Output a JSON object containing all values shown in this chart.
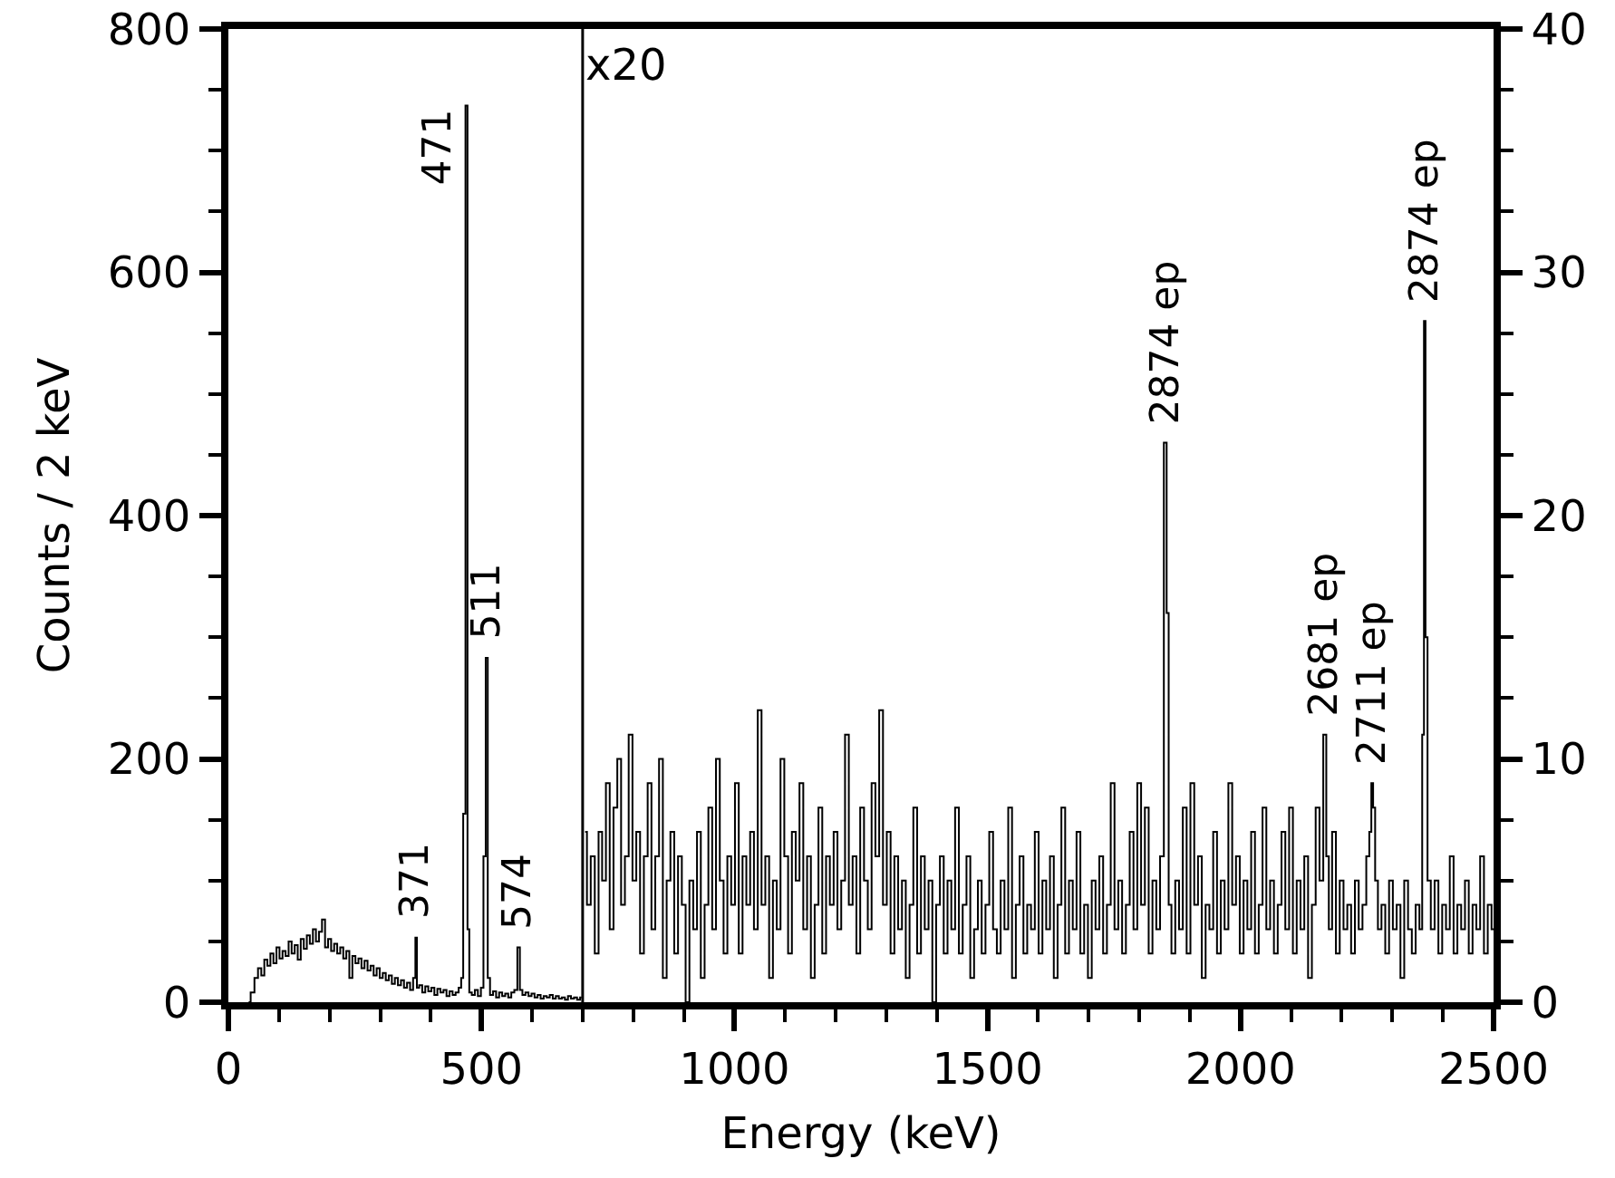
{
  "chart_data": {
    "type": "step",
    "xlabel": "Energy (keV)",
    "ylabel": "Counts / 2 keV",
    "xlim": [
      0,
      2500
    ],
    "xticks": [
      0,
      {
        "value": 100,
        "label": null
      },
      {
        "value": 200,
        "label": null
      },
      {
        "value": 300,
        "label": null
      },
      {
        "value": 400,
        "label": null
      },
      500,
      {
        "value": 600,
        "label": null
      },
      {
        "value": 700,
        "label": null
      },
      {
        "value": 800,
        "label": null
      },
      {
        "value": 900,
        "label": null
      },
      1000,
      {
        "value": 1100,
        "label": null
      },
      {
        "value": 1200,
        "label": null
      },
      {
        "value": 1300,
        "label": null
      },
      {
        "value": 1400,
        "label": null
      },
      1500,
      {
        "value": 1600,
        "label": null
      },
      {
        "value": 1700,
        "label": null
      },
      {
        "value": 1800,
        "label": null
      },
      {
        "value": 1900,
        "label": null
      },
      2000,
      {
        "value": 2100,
        "label": null
      },
      {
        "value": 2200,
        "label": null
      },
      {
        "value": 2300,
        "label": null
      },
      {
        "value": 2400,
        "label": null
      },
      2500
    ],
    "ylim": [
      0,
      800
    ],
    "yticks": [
      0,
      {
        "value": 50,
        "label": null
      },
      {
        "value": 100,
        "label": null
      },
      {
        "value": 150,
        "label": null
      },
      200,
      {
        "value": 250,
        "label": null
      },
      {
        "value": 300,
        "label": null
      },
      {
        "value": 350,
        "label": null
      },
      400,
      {
        "value": 450,
        "label": null
      },
      {
        "value": 500,
        "label": null
      },
      {
        "value": 550,
        "label": null
      },
      600,
      {
        "value": 650,
        "label": null
      },
      {
        "value": 700,
        "label": null
      },
      {
        "value": 750,
        "label": null
      },
      800
    ],
    "y2lim": [
      0,
      40
    ],
    "y2ticks": [
      0,
      {
        "value": 2.5,
        "label": null
      },
      {
        "value": 5,
        "label": null
      },
      {
        "value": 7.5,
        "label": null
      },
      10,
      {
        "value": 12.5,
        "label": null
      },
      {
        "value": 15,
        "label": null
      },
      {
        "value": 17.5,
        "label": null
      },
      20,
      {
        "value": 22.5,
        "label": null
      },
      {
        "value": 25,
        "label": null
      },
      {
        "value": 27.5,
        "label": null
      },
      30,
      {
        "value": 32.5,
        "label": null
      },
      {
        "value": 35,
        "label": null
      },
      {
        "value": 37.5,
        "label": null
      },
      40
    ],
    "grid": false,
    "ref_lines": [
      {
        "axis": "x",
        "value": 700,
        "label": "x20",
        "color": "#000000"
      }
    ],
    "annotations": [
      {
        "text": "371",
        "x": 371,
        "y": 53
      },
      {
        "text": "471",
        "x": 471,
        "y": 737
      },
      {
        "text": "511",
        "x": 511,
        "y": 283
      },
      {
        "text": "574",
        "x": 574,
        "y": 45
      },
      {
        "text": "2874 ep",
        "x": 1852,
        "y": 460
      },
      {
        "text": "2681 ep",
        "x": 2167,
        "y": 220
      },
      {
        "text": "2711 ep",
        "x": 2260,
        "y": 180
      },
      {
        "text": "2874 ep",
        "x": 2364,
        "y": 560
      }
    ],
    "series": [
      {
        "color": "#000000",
        "x": [
          40,
          48,
          55,
          62,
          68,
          74,
          80,
          86,
          92,
          98,
          104,
          110,
          116,
          122,
          128,
          134,
          140,
          146,
          152,
          158,
          164,
          170,
          176,
          182,
          188,
          194,
          200,
          206,
          212,
          218,
          224,
          230,
          236,
          242,
          248,
          254,
          260,
          266,
          272,
          278,
          284,
          290,
          296,
          302,
          308,
          314,
          320,
          326,
          332,
          338,
          344,
          350,
          356,
          362,
          368,
          371,
          374,
          380,
          386,
          392,
          398,
          404,
          410,
          416,
          422,
          428,
          434,
          440,
          446,
          452,
          458,
          462,
          466,
          471,
          474,
          478,
          484,
          490,
          496,
          502,
          506,
          511,
          514,
          520,
          526,
          532,
          538,
          544,
          550,
          556,
          562,
          568,
          574,
          578,
          584,
          590,
          596,
          602,
          608,
          614,
          620,
          626,
          632,
          638,
          644,
          650,
          656,
          662,
          668,
          674,
          680,
          686,
          692,
          698
        ],
        "values": [
          0,
          8,
          20,
          28,
          22,
          35,
          30,
          40,
          32,
          45,
          36,
          42,
          38,
          50,
          40,
          47,
          35,
          52,
          44,
          55,
          48,
          60,
          50,
          58,
          68,
          45,
          52,
          42,
          48,
          40,
          45,
          36,
          42,
          20,
          38,
          32,
          36,
          28,
          34,
          26,
          30,
          22,
          28,
          20,
          24,
          18,
          22,
          15,
          20,
          14,
          18,
          12,
          16,
          10,
          20,
          53,
          12,
          14,
          8,
          13,
          9,
          12,
          6,
          11,
          8,
          10,
          5,
          9,
          6,
          8,
          12,
          20,
          155,
          737,
          60,
          8,
          6,
          10,
          5,
          12,
          120,
          283,
          20,
          6,
          9,
          4,
          8,
          5,
          7,
          4,
          8,
          10,
          45,
          10,
          6,
          8,
          5,
          7,
          4,
          6,
          3,
          5,
          4,
          6,
          3,
          5,
          3,
          4,
          2,
          5,
          3,
          4,
          2,
          4
        ]
      },
      {
        "color": "#000000",
        "axis": "y2",
        "x": [
          705,
          712,
          720,
          728,
          735,
          742,
          750,
          757,
          765,
          772,
          780,
          787,
          795,
          802,
          810,
          817,
          825,
          832,
          840,
          847,
          855,
          862,
          870,
          877,
          885,
          892,
          900,
          907,
          915,
          922,
          930,
          937,
          945,
          952,
          960,
          967,
          975,
          982,
          990,
          997,
          1005,
          1012,
          1020,
          1027,
          1035,
          1042,
          1050,
          1057,
          1065,
          1072,
          1080,
          1087,
          1095,
          1102,
          1110,
          1117,
          1125,
          1132,
          1140,
          1147,
          1155,
          1162,
          1170,
          1177,
          1185,
          1192,
          1200,
          1207,
          1215,
          1222,
          1230,
          1237,
          1245,
          1252,
          1260,
          1267,
          1275,
          1282,
          1290,
          1297,
          1305,
          1312,
          1320,
          1327,
          1335,
          1342,
          1350,
          1357,
          1365,
          1372,
          1380,
          1387,
          1395,
          1402,
          1410,
          1417,
          1425,
          1432,
          1440,
          1447,
          1455,
          1462,
          1470,
          1477,
          1485,
          1492,
          1500,
          1507,
          1515,
          1522,
          1530,
          1537,
          1545,
          1552,
          1560,
          1567,
          1575,
          1582,
          1590,
          1597,
          1605,
          1612,
          1620,
          1627,
          1635,
          1642,
          1650,
          1657,
          1665,
          1672,
          1680,
          1687,
          1695,
          1702,
          1710,
          1717,
          1725,
          1732,
          1740,
          1747,
          1755,
          1762,
          1770,
          1777,
          1785,
          1792,
          1800,
          1807,
          1815,
          1822,
          1830,
          1837,
          1845,
          1852,
          1856,
          1860,
          1867,
          1875,
          1882,
          1890,
          1897,
          1905,
          1912,
          1920,
          1927,
          1935,
          1942,
          1950,
          1957,
          1965,
          1972,
          1980,
          1987,
          1995,
          2002,
          2010,
          2017,
          2025,
          2032,
          2040,
          2047,
          2055,
          2062,
          2070,
          2077,
          2085,
          2092,
          2100,
          2107,
          2115,
          2122,
          2130,
          2137,
          2145,
          2152,
          2160,
          2167,
          2172,
          2177,
          2185,
          2192,
          2200,
          2207,
          2215,
          2222,
          2230,
          2237,
          2245,
          2252,
          2257,
          2260,
          2264,
          2268,
          2275,
          2282,
          2290,
          2297,
          2305,
          2312,
          2320,
          2327,
          2335,
          2342,
          2350,
          2357,
          2361,
          2364,
          2367,
          2372,
          2380,
          2387,
          2395,
          2402,
          2410,
          2417,
          2425,
          2432,
          2440,
          2447,
          2455,
          2462,
          2470,
          2477,
          2485,
          2492,
          2500
        ],
        "values": [
          7,
          4,
          6,
          2,
          7,
          5,
          9,
          3,
          8,
          10,
          4,
          6,
          11,
          5,
          7,
          2,
          6,
          9,
          3,
          6,
          10,
          1,
          5,
          7,
          2,
          6,
          4,
          0,
          5,
          3,
          7,
          1,
          4,
          8,
          3,
          10,
          5,
          2,
          6,
          4,
          9,
          2,
          6,
          4,
          7,
          3,
          12,
          4,
          6,
          1,
          5,
          3,
          10,
          6,
          2,
          7,
          5,
          9,
          3,
          6,
          1,
          4,
          8,
          2,
          6,
          4,
          7,
          3,
          5,
          11,
          4,
          6,
          2,
          8,
          5,
          3,
          9,
          6,
          12,
          4,
          7,
          2,
          6,
          3,
          5,
          1,
          4,
          8,
          2,
          6,
          3,
          5,
          0,
          4,
          6,
          2,
          5,
          3,
          8,
          2,
          4,
          6,
          1,
          3,
          5,
          2,
          4,
          7,
          3,
          2,
          5,
          3,
          8,
          1,
          4,
          6,
          2,
          4,
          3,
          7,
          2,
          5,
          3,
          6,
          1,
          4,
          8,
          2,
          5,
          3,
          7,
          2,
          4,
          1,
          5,
          3,
          6,
          2,
          4,
          9,
          3,
          5,
          2,
          4,
          7,
          3,
          9,
          4,
          8,
          2,
          5,
          3,
          6,
          23,
          16,
          4,
          2,
          5,
          3,
          8,
          2,
          9,
          4,
          6,
          1,
          4,
          3,
          7,
          2,
          5,
          3,
          9,
          4,
          6,
          2,
          5,
          3,
          7,
          2,
          4,
          8,
          3,
          5,
          2,
          4,
          7,
          3,
          8,
          2,
          5,
          3,
          6,
          1,
          4,
          8,
          5,
          11,
          6,
          3,
          7,
          2,
          5,
          3,
          4,
          2,
          5,
          3,
          4,
          6,
          7,
          9,
          8,
          5,
          3,
          4,
          2,
          5,
          3,
          4,
          1,
          5,
          3,
          2,
          4,
          3,
          11,
          28,
          15,
          5,
          3,
          5,
          2,
          4,
          3,
          6,
          2,
          4,
          3,
          5,
          2,
          4,
          3,
          6,
          2,
          4,
          3
        ]
      }
    ]
  }
}
